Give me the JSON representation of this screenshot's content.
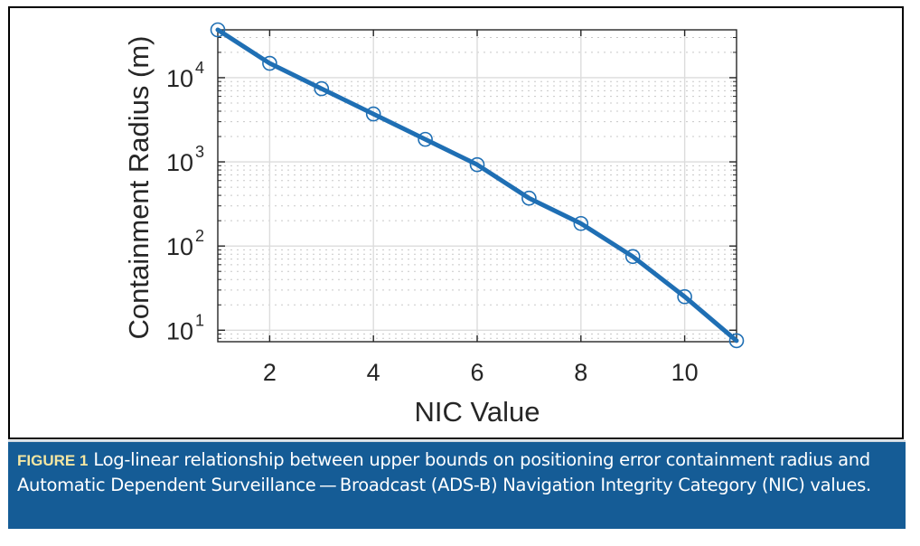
{
  "chart_data": {
    "type": "line",
    "title": "",
    "xlabel": "NIC Value",
    "ylabel": "Containment Radius (m)",
    "yscale": "log",
    "xlim": [
      1,
      11
    ],
    "ylim": [
      7.3,
      37040
    ],
    "xticks": [
      2,
      4,
      6,
      8,
      10
    ],
    "xtick_labels": [
      "2",
      "4",
      "6",
      "8",
      "10"
    ],
    "yticks": [
      10,
      100,
      1000,
      10000
    ],
    "ytick_labels": [
      {
        "base": "10",
        "exp": "1"
      },
      {
        "base": "10",
        "exp": "2"
      },
      {
        "base": "10",
        "exp": "3"
      },
      {
        "base": "10",
        "exp": "4"
      }
    ],
    "grid": true,
    "minor_grid": true,
    "legend": null,
    "series": [
      {
        "name": "Containment Radius",
        "color": "#1f6fb4",
        "marker": "circle",
        "x": [
          1,
          2,
          3,
          4,
          5,
          6,
          7,
          8,
          9,
          10,
          11
        ],
        "y": [
          37040,
          14816,
          7408,
          3704,
          1852,
          926,
          370.4,
          185.2,
          75,
          25,
          7.5
        ]
      }
    ]
  },
  "caption": {
    "label": "FIGURE 1",
    "text": "Log-linear relationship between upper bounds on positioning error containment radius and Automatic Dependent Surveillance — Broadcast (ADS-B) Navigation Integrity Category (NIC) values."
  },
  "colors": {
    "caption_background": "#155c96",
    "caption_label": "#f3e6a2",
    "series_line": "#1f6fb4"
  }
}
